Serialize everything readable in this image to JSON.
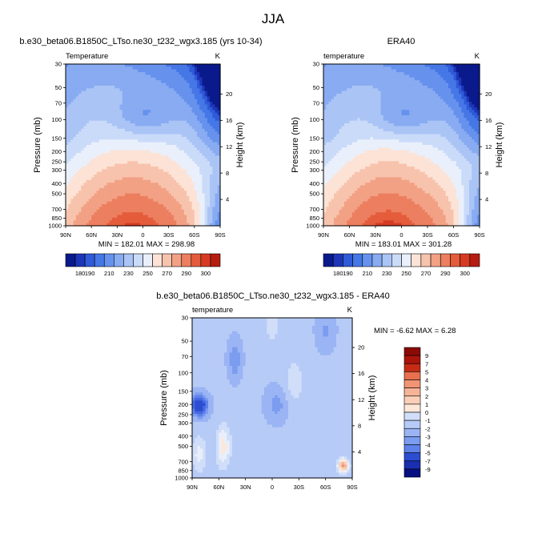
{
  "figure": {
    "title": "JJA",
    "colors": {
      "temp_scale": [
        "#0a1a8c",
        "#1d36b8",
        "#2f5ad8",
        "#4677e6",
        "#6692ee",
        "#88abf2",
        "#aac4f6",
        "#cadbf9",
        "#e9f0fb",
        "#fce3d6",
        "#f8c3ad",
        "#f2a185",
        "#ec7f5f",
        "#e45c3b",
        "#d63a22",
        "#b51d11",
        "#8c0e0a"
      ],
      "diff_scale": [
        "#080f80",
        "#1a2fae",
        "#2c4dd1",
        "#4669e2",
        "#5e82ea",
        "#7c9cf0",
        "#9ab4f4",
        "#b7cbf7",
        "#d1def9",
        "#e8effb",
        "#fde7d9",
        "#f9cfb8",
        "#f5b497",
        "#f09474",
        "#e86f4f",
        "#db4a2d",
        "#c62b16",
        "#a9140c",
        "#8a0a06"
      ]
    }
  },
  "panels": [
    {
      "title": "b.e30_beta06.B1850C_LTso.ne30_t232_wgx3.185 (yrs 10-34)",
      "left_label": "Temperature",
      "right_label": "K",
      "stats": "MIN = 182.01   MAX = 298.98",
      "colorbar_labels": [
        "180",
        "190",
        "210",
        "230",
        "250",
        "270",
        "290",
        "300"
      ]
    },
    {
      "title": "ERA40",
      "left_label": "temperature",
      "right_label": "K",
      "stats": "MIN = 183.01   MAX = 301.28",
      "colorbar_labels": [
        "180",
        "190",
        "210",
        "230",
        "250",
        "270",
        "290",
        "300"
      ]
    },
    {
      "title": "b.e30_beta06.B1850C_LTso.ne30_t232_wgx3.185 - ERA40",
      "left_label": "temperature",
      "right_label": "K",
      "stats": "MIN = -6.62   MAX =  6.28",
      "colorbar_labels": [
        "9",
        "7",
        "5",
        "4",
        "3",
        "2",
        "1",
        "0",
        "-1",
        "-2",
        "-3",
        "-4",
        "-5",
        "-7",
        "-9"
      ]
    }
  ],
  "chart_data": [
    {
      "type": "heatmap",
      "title": "b.e30_beta06.B1850C_LTso.ne30_t232_wgx3.185 (yrs 10-34)",
      "xlabel": "",
      "ylabel": "Pressure (mb)",
      "y2label": "Height (km)",
      "x_ticks": [
        "90N",
        "60N",
        "30N",
        "0",
        "30S",
        "60S",
        "90S"
      ],
      "y_ticks": [
        "30",
        "50",
        "70",
        "100",
        "150",
        "200",
        "250",
        "300",
        "400",
        "500",
        "700",
        "850",
        "1000"
      ],
      "y2_ticks": [
        "20",
        "16",
        "12",
        "8",
        "4"
      ],
      "y_scale": "log",
      "ylim": [
        30,
        1000
      ],
      "xlim": [
        90,
        -90
      ],
      "value_units": "K",
      "contour_levels": [
        180,
        185,
        190,
        200,
        210,
        220,
        230,
        240,
        250,
        260,
        270,
        280,
        290,
        295,
        300
      ],
      "min": 182.01,
      "max": 298.98
    },
    {
      "type": "heatmap",
      "title": "ERA40",
      "xlabel": "",
      "ylabel": "Pressure (mb)",
      "y2label": "Height (km)",
      "x_ticks": [
        "90N",
        "60N",
        "30N",
        "0",
        "30S",
        "60S",
        "90S"
      ],
      "y_ticks": [
        "30",
        "50",
        "70",
        "100",
        "150",
        "200",
        "250",
        "300",
        "400",
        "500",
        "700",
        "850",
        "1000"
      ],
      "y2_ticks": [
        "20",
        "16",
        "12",
        "8",
        "4"
      ],
      "y_scale": "log",
      "ylim": [
        30,
        1000
      ],
      "xlim": [
        90,
        -90
      ],
      "value_units": "K",
      "contour_levels": [
        180,
        185,
        190,
        200,
        210,
        220,
        230,
        240,
        250,
        260,
        270,
        280,
        290,
        295,
        300
      ],
      "min": 183.01,
      "max": 301.28
    },
    {
      "type": "heatmap",
      "title": "b.e30_beta06.B1850C_LTso.ne30_t232_wgx3.185 - ERA40",
      "xlabel": "",
      "ylabel": "Pressure (mb)",
      "y2label": "Height (km)",
      "x_ticks": [
        "90N",
        "60N",
        "30N",
        "0",
        "30S",
        "60S",
        "90S"
      ],
      "y_ticks": [
        "30",
        "50",
        "70",
        "100",
        "150",
        "200",
        "250",
        "300",
        "400",
        "500",
        "700",
        "850",
        "1000"
      ],
      "y2_ticks": [
        "20",
        "16",
        "12",
        "8",
        "4"
      ],
      "y_scale": "log",
      "ylim": [
        30,
        1000
      ],
      "xlim": [
        90,
        -90
      ],
      "value_units": "K",
      "contour_levels": [
        -9,
        -7,
        -5,
        -4,
        -3,
        -2,
        -1,
        0,
        1,
        2,
        3,
        4,
        5,
        7,
        9
      ],
      "min": -6.62,
      "max": 6.28
    }
  ]
}
